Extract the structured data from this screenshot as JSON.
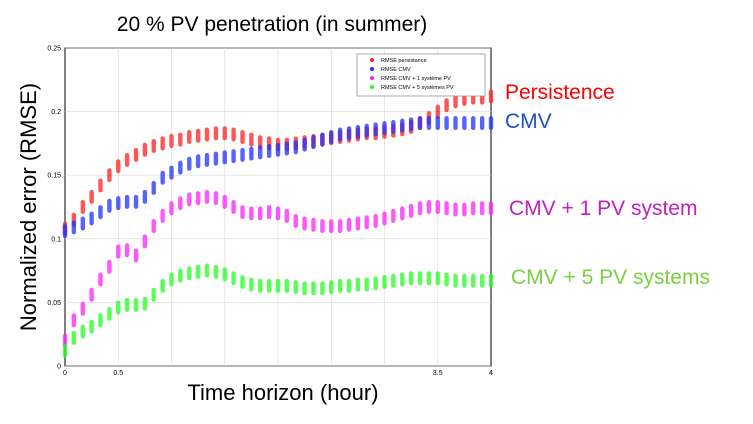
{
  "chart_data": {
    "type": "scatter",
    "title": "20 % PV penetration (in summer)",
    "xlabel": "Time horizon (hour)",
    "ylabel": "Normalized error (RMSE)",
    "xlim": [
      0,
      4
    ],
    "ylim": [
      0,
      0.25
    ],
    "x_ticks": [
      "0",
      "0.5",
      "3.5",
      "4"
    ],
    "x_tick_values": [
      0,
      0.5,
      3.5,
      4
    ],
    "y_ticks": [
      "0",
      "0.05",
      "0.1",
      "0.15",
      "0.2",
      "0.25"
    ],
    "y_tick_values": [
      0,
      0.05,
      0.1,
      0.15,
      0.2,
      0.25
    ],
    "grid": true,
    "legend_position": "top-right",
    "x": [
      0,
      0.083,
      0.167,
      0.25,
      0.333,
      0.417,
      0.5,
      0.583,
      0.667,
      0.75,
      0.833,
      0.917,
      1.0,
      1.083,
      1.167,
      1.25,
      1.333,
      1.417,
      1.5,
      1.583,
      1.667,
      1.75,
      1.833,
      1.917,
      2.0,
      2.083,
      2.167,
      2.25,
      2.333,
      2.417,
      2.5,
      2.583,
      2.667,
      2.75,
      2.833,
      2.917,
      3.0,
      3.083,
      3.167,
      3.25,
      3.333,
      3.417,
      3.5,
      3.583,
      3.667,
      3.75,
      3.833,
      3.917,
      4.0
    ],
    "series": [
      {
        "name": "RMSE persistance",
        "color": "#ff2020",
        "values": [
          0.108,
          0.115,
          0.125,
          0.133,
          0.142,
          0.15,
          0.157,
          0.162,
          0.166,
          0.17,
          0.173,
          0.175,
          0.177,
          0.178,
          0.18,
          0.181,
          0.182,
          0.183,
          0.183,
          0.182,
          0.18,
          0.178,
          0.176,
          0.175,
          0.174,
          0.174,
          0.175,
          0.176,
          0.177,
          0.178,
          0.179,
          0.18,
          0.181,
          0.182,
          0.183,
          0.183,
          0.184,
          0.185,
          0.186,
          0.188,
          0.191,
          0.195,
          0.2,
          0.205,
          0.208,
          0.21,
          0.211,
          0.211,
          0.212
        ]
      },
      {
        "name": "RMSE CMV",
        "color": "#2030ff",
        "values": [
          0.106,
          0.109,
          0.112,
          0.116,
          0.121,
          0.126,
          0.128,
          0.129,
          0.129,
          0.133,
          0.14,
          0.148,
          0.152,
          0.156,
          0.159,
          0.161,
          0.162,
          0.163,
          0.164,
          0.165,
          0.166,
          0.167,
          0.168,
          0.169,
          0.17,
          0.171,
          0.172,
          0.174,
          0.176,
          0.178,
          0.18,
          0.182,
          0.183,
          0.184,
          0.185,
          0.186,
          0.187,
          0.188,
          0.189,
          0.19,
          0.191,
          0.191,
          0.191,
          0.191,
          0.191,
          0.191,
          0.191,
          0.191,
          0.191
        ]
      },
      {
        "name": "RMSE CMV + 1 système PV",
        "color": "#ff20ff",
        "values": [
          0.02,
          0.036,
          0.045,
          0.056,
          0.068,
          0.078,
          0.09,
          0.091,
          0.087,
          0.098,
          0.11,
          0.118,
          0.124,
          0.128,
          0.131,
          0.132,
          0.133,
          0.132,
          0.129,
          0.125,
          0.121,
          0.12,
          0.12,
          0.121,
          0.12,
          0.118,
          0.114,
          0.112,
          0.111,
          0.11,
          0.11,
          0.11,
          0.111,
          0.112,
          0.113,
          0.114,
          0.116,
          0.118,
          0.12,
          0.122,
          0.124,
          0.125,
          0.125,
          0.124,
          0.123,
          0.123,
          0.124,
          0.124,
          0.124
        ]
      },
      {
        "name": "RMSE CMV + 5 systèmes PV",
        "color": "#20ff20",
        "values": [
          0.012,
          0.022,
          0.027,
          0.031,
          0.036,
          0.041,
          0.046,
          0.048,
          0.048,
          0.049,
          0.056,
          0.063,
          0.068,
          0.071,
          0.073,
          0.074,
          0.075,
          0.074,
          0.072,
          0.069,
          0.066,
          0.064,
          0.063,
          0.063,
          0.063,
          0.063,
          0.062,
          0.061,
          0.061,
          0.061,
          0.062,
          0.063,
          0.063,
          0.064,
          0.064,
          0.065,
          0.066,
          0.067,
          0.068,
          0.069,
          0.069,
          0.069,
          0.069,
          0.068,
          0.067,
          0.067,
          0.067,
          0.067,
          0.067
        ]
      }
    ],
    "side_labels": [
      {
        "text": "Persistence",
        "color": "#ff0000"
      },
      {
        "text": "CMV",
        "color": "#1f4fc0"
      },
      {
        "text": "CMV + 1 PV system",
        "color": "#c020c0"
      },
      {
        "text": "CMV + 5 PV systems",
        "color": "#7ad040"
      }
    ]
  }
}
